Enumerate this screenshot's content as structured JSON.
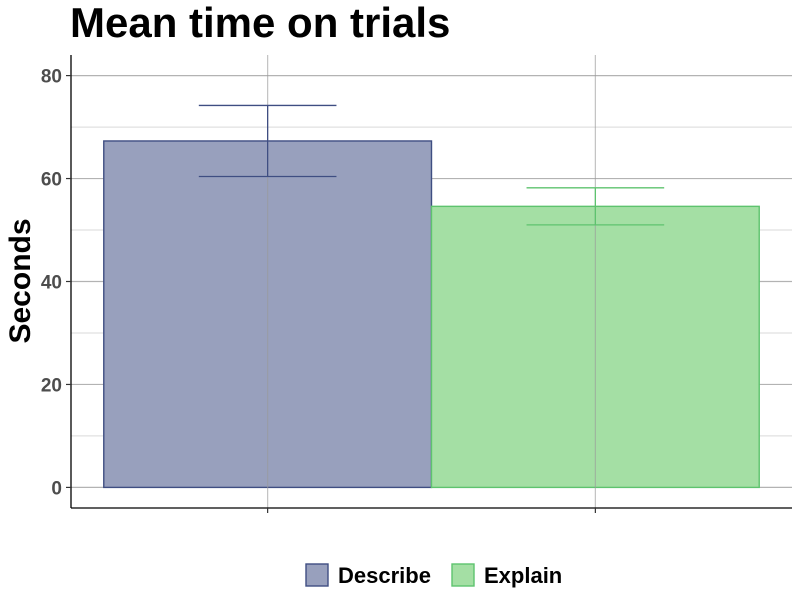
{
  "chart_data": {
    "type": "bar",
    "title": "Mean time on trials",
    "xlabel": "",
    "ylabel": "Seconds",
    "categories": [
      "Describe",
      "Explain"
    ],
    "values": [
      67.3,
      54.6
    ],
    "error_bars": [
      {
        "category": "Describe",
        "lower": 60.4,
        "upper": 74.2
      },
      {
        "category": "Explain",
        "lower": 51.0,
        "upper": 58.2
      }
    ],
    "ylim": [
      -4,
      84
    ],
    "yticks": [
      0,
      20,
      40,
      60,
      80
    ],
    "grid": true,
    "legend": {
      "position": "bottom",
      "entries": [
        "Describe",
        "Explain"
      ]
    },
    "colors": {
      "Describe": {
        "fill": "#98a0bd",
        "stroke": "#3f4e82"
      },
      "Explain": {
        "fill": "#a4dfa4",
        "stroke": "#5ec36e"
      },
      "grid_major": "#b3b3b3",
      "grid_minor": "#d9d9d9",
      "axis": "#000000"
    }
  }
}
